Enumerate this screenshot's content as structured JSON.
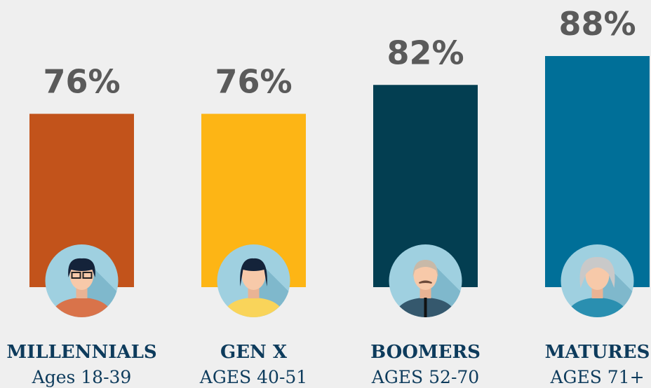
{
  "chart_data": {
    "type": "bar",
    "categories": [
      "MILLENNIALS",
      "GEN X",
      "BOOMERS",
      "MATURES"
    ],
    "subtitles": [
      "Ages 18-39",
      "AGES 40-51",
      "AGES 52-70",
      "AGES 71+"
    ],
    "values": [
      76,
      76,
      82,
      88
    ],
    "value_labels": [
      "76%",
      "76%",
      "82%",
      "88%"
    ],
    "colors": [
      "#c2531b",
      "#fdb515",
      "#033e51",
      "#006f98"
    ],
    "ylim": [
      40,
      88
    ]
  }
}
